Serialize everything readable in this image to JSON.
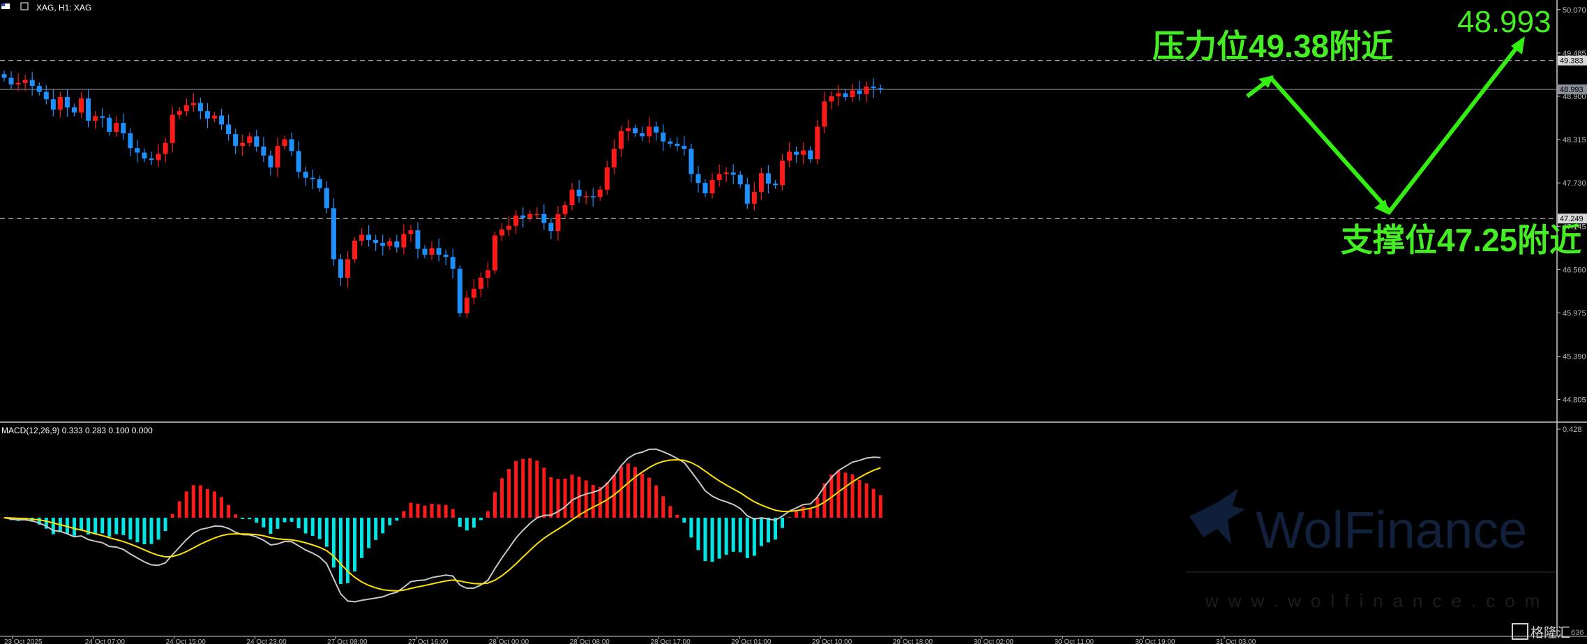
{
  "window": {
    "title": "XAG, H1:  XAG"
  },
  "indicator": {
    "label": "MACD(12,26,9) 0.333 0.283 0.100 0.000"
  },
  "annotations": {
    "resistance": "压力位49.38附近",
    "support": "支撑位47.25附近",
    "target": "48.993"
  },
  "watermark": {
    "brand": "WolFinance",
    "url": "www.wolfinance.com",
    "corner": "格隆汇",
    "corner_num": "636"
  },
  "chart_data": [
    {
      "type": "candlestick",
      "title": "XAG, H1:  XAG",
      "ylim": [
        44.5,
        50.2
      ],
      "yticks": [
        "50.070",
        "49.485",
        "48.900",
        "48.315",
        "47.730",
        "47.145",
        "46.560",
        "45.975",
        "45.390",
        "44.805"
      ],
      "price_labels": [
        {
          "text": "49.383",
          "value": 49.383,
          "kind": "resistance"
        },
        {
          "text": "48.993",
          "value": 48.993,
          "kind": "current"
        },
        {
          "text": "47.249",
          "value": 47.249,
          "kind": "support"
        }
      ],
      "hlines": [
        {
          "value": 49.383,
          "style": "dashed"
        },
        {
          "value": 48.993,
          "style": "solid"
        },
        {
          "value": 47.249,
          "style": "dashed"
        }
      ],
      "xticks": [
        "23 Oct 2025",
        "24 Oct 07:00",
        "24 Oct 15:00",
        "24 Oct 23:00",
        "27 Oct 08:00",
        "27 Oct 16:00",
        "28 Oct 00:00",
        "28 Oct 08:00",
        "28 Oct 17:00",
        "29 Oct 01:00",
        "29 Oct 10:00",
        "29 Oct 18:00",
        "30 Oct 02:00",
        "30 Oct 11:00",
        "30 Oct 19:00",
        "31 Oct 03:00"
      ],
      "up_color": "#ff1a1a",
      "down_color": "#1e90ff",
      "closes": [
        49.15,
        49.06,
        49.08,
        49.12,
        49.04,
        48.96,
        48.86,
        48.72,
        48.89,
        48.75,
        48.68,
        48.87,
        48.57,
        48.63,
        48.61,
        48.42,
        48.54,
        48.4,
        48.2,
        48.14,
        48.06,
        48.04,
        48.12,
        48.27,
        48.65,
        48.7,
        48.78,
        48.81,
        48.7,
        48.6,
        48.64,
        48.52,
        48.39,
        48.23,
        48.27,
        48.36,
        48.22,
        48.1,
        47.94,
        48.23,
        48.32,
        48.16,
        47.88,
        47.8,
        47.78,
        47.66,
        47.39,
        46.7,
        46.45,
        46.7,
        46.95,
        47.03,
        46.96,
        46.92,
        46.88,
        46.94,
        46.86,
        47.04,
        47.09,
        46.84,
        46.76,
        46.85,
        46.76,
        46.73,
        46.57,
        45.97,
        46.18,
        46.3,
        46.45,
        46.55,
        47.02,
        47.1,
        47.15,
        47.29,
        47.26,
        47.31,
        47.31,
        47.19,
        47.08,
        47.31,
        47.43,
        47.64,
        47.55,
        47.55,
        47.54,
        47.64,
        47.94,
        48.19,
        48.43,
        48.47,
        48.4,
        48.36,
        48.49,
        48.41,
        48.29,
        48.26,
        48.23,
        48.19,
        47.85,
        47.73,
        47.59,
        47.77,
        47.85,
        47.87,
        47.84,
        47.71,
        47.45,
        47.61,
        47.86,
        47.72,
        47.7,
        48.03,
        48.15,
        48.11,
        48.17,
        48.05,
        48.49,
        48.83,
        48.9,
        48.94,
        48.89,
        48.98,
        48.93,
        49.03,
        49.01,
        48.99
      ]
    },
    {
      "type": "macd",
      "title": "MACD(12,26,9) 0.333 0.283 0.100 0.000",
      "ylim": [
        -0.62,
        0.43
      ],
      "ytick": "0.428",
      "series": [
        {
          "name": "MACD",
          "color": "#c8c8c8"
        },
        {
          "name": "Signal",
          "color": "#ffe000"
        },
        {
          "name": "Histogram",
          "color_pos": "#ff1a1a",
          "color_neg": "#00e5e5"
        }
      ]
    }
  ]
}
